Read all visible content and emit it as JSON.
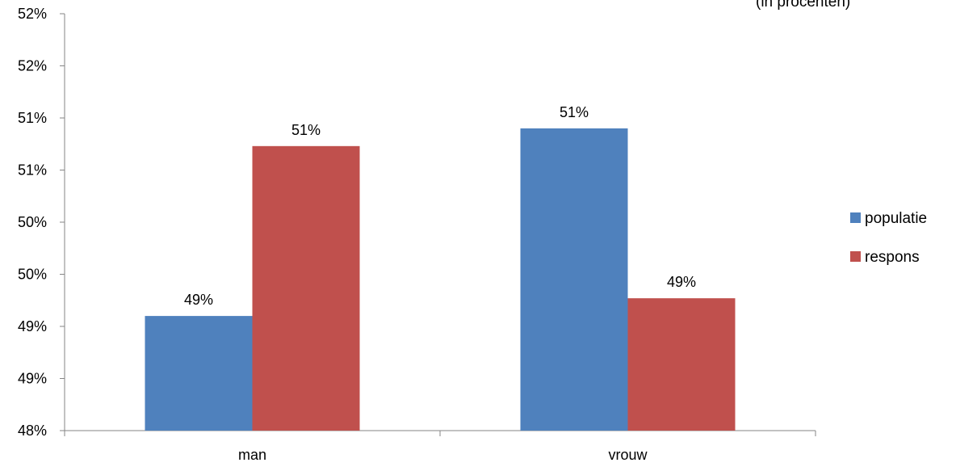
{
  "chart_data": {
    "type": "bar",
    "categories": [
      "man",
      "vrouw"
    ],
    "series": [
      {
        "name": "populatie",
        "values": [
          49.1,
          50.9
        ],
        "labels": [
          "49%",
          "51%"
        ],
        "color": "#4F81BD"
      },
      {
        "name": "respons",
        "values": [
          50.73,
          49.27
        ],
        "labels": [
          "51%",
          "49%"
        ],
        "color": "#C0504D"
      }
    ],
    "ylim": [
      48,
      52
    ],
    "ytick_values": [
      48,
      48.5,
      49,
      49.5,
      50,
      50.5,
      51,
      51.5,
      52
    ],
    "ytick_labels": [
      "48%",
      "49%",
      "49%",
      "50%",
      "50%",
      "51%",
      "51%",
      "52%",
      "52%"
    ],
    "legend_position": "right",
    "grid": false,
    "title_fragment": "(in procenten)"
  }
}
